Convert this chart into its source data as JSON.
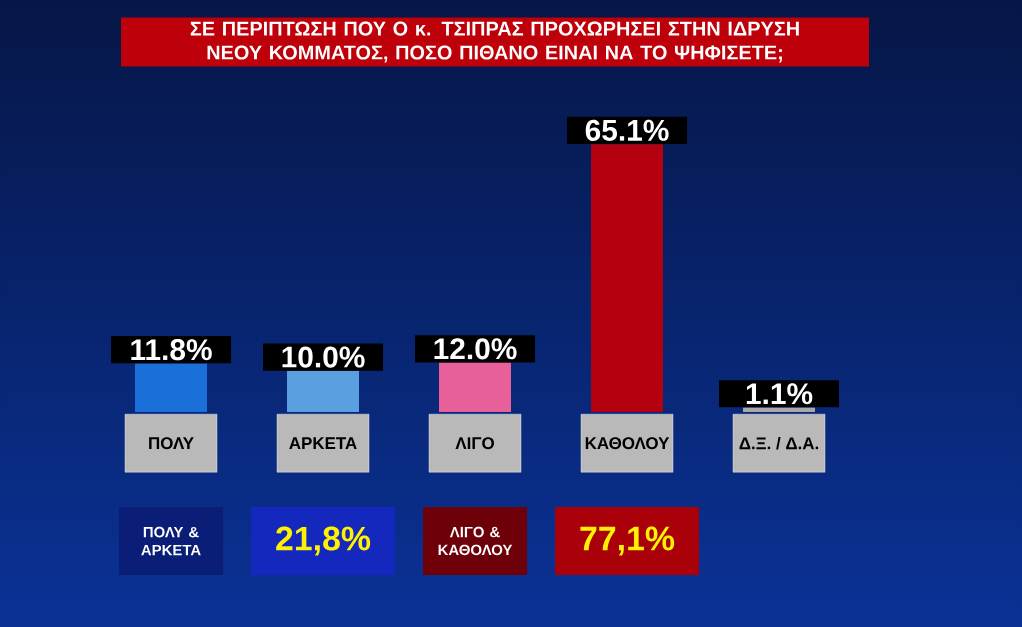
{
  "chart_data": {
    "type": "bar",
    "title": "ΣΕ ΠΕΡΙΠΤΩΣΗ ΠΟΥ Ο κ. ΤΣΙΠΡΑΣ ΠΡΟΧΩΡΗΣΕΙ ΣΤΗΝ ΙΔΡΥΣΗ ΝΕΟΥ ΚΟΜΜΑΤΟΣ, ΠΟΣΟ ΠΙΘΑΝΟ ΕΙΝΑΙ ΝΑ ΤΟ ΨΗΦΙΣΕΤΕ;",
    "categories": [
      "ΠΟΛΥ",
      "ΑΡΚΕΤΑ",
      "ΛΙΓΟ",
      "ΚΑΘΟΛΟΥ",
      "Δ.Ξ. / Δ.Α."
    ],
    "values": [
      11.8,
      10.0,
      12.0,
      65.1,
      1.1
    ],
    "colors": [
      "#1a6fd8",
      "#5a9fe0",
      "#e8609a",
      "#b50010",
      "#a8a8a8"
    ],
    "value_labels": [
      "11.8%",
      "10.0%",
      "12.0%",
      "65.1%",
      "1.1%"
    ],
    "annotations": [
      "ΠΟΛΥ & ΑΡΚΕΤΑ",
      "21,8%",
      "ΛΙΓΟ & ΚΑΘΟΛΟΥ",
      "77,1%"
    ]
  }
}
